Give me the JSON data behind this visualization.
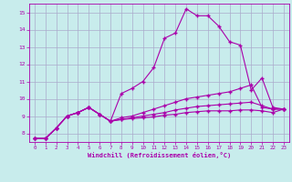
{
  "xlabel": "Windchill (Refroidissement éolien,°C)",
  "background_color": "#c8ecec",
  "line_color": "#aa00aa",
  "grid_color": "#aaaacc",
  "x_data": [
    0,
    1,
    2,
    3,
    4,
    5,
    6,
    7,
    8,
    9,
    10,
    11,
    12,
    13,
    14,
    15,
    16,
    17,
    18,
    19,
    20,
    21,
    22,
    23
  ],
  "series1": [
    7.7,
    7.7,
    8.3,
    9.0,
    9.2,
    9.5,
    9.1,
    8.7,
    10.3,
    10.6,
    11.0,
    11.8,
    13.5,
    13.8,
    15.2,
    14.8,
    14.8,
    14.2,
    13.3,
    13.1,
    10.5,
    11.2,
    9.5,
    9.4
  ],
  "series2": [
    7.7,
    7.7,
    8.3,
    9.0,
    9.2,
    9.5,
    9.1,
    8.7,
    8.9,
    9.0,
    9.2,
    9.4,
    9.6,
    9.8,
    10.0,
    10.1,
    10.2,
    10.3,
    10.4,
    10.6,
    10.8,
    9.5,
    9.4,
    9.4
  ],
  "series3": [
    7.7,
    7.7,
    8.3,
    9.0,
    9.2,
    9.5,
    9.1,
    8.7,
    8.8,
    8.9,
    9.0,
    9.1,
    9.2,
    9.35,
    9.45,
    9.55,
    9.6,
    9.65,
    9.7,
    9.75,
    9.8,
    9.6,
    9.4,
    9.4
  ],
  "series4": [
    7.7,
    7.7,
    8.3,
    9.0,
    9.2,
    9.5,
    9.1,
    8.7,
    8.8,
    8.85,
    8.9,
    8.95,
    9.05,
    9.1,
    9.2,
    9.25,
    9.3,
    9.3,
    9.3,
    9.35,
    9.35,
    9.3,
    9.2,
    9.4
  ],
  "ylim": [
    7.5,
    15.5
  ],
  "xlim": [
    -0.5,
    23.5
  ],
  "yticks": [
    8,
    9,
    10,
    11,
    12,
    13,
    14,
    15
  ],
  "xticks": [
    0,
    1,
    2,
    3,
    4,
    5,
    6,
    7,
    8,
    9,
    10,
    11,
    12,
    13,
    14,
    15,
    16,
    17,
    18,
    19,
    20,
    21,
    22,
    23
  ]
}
